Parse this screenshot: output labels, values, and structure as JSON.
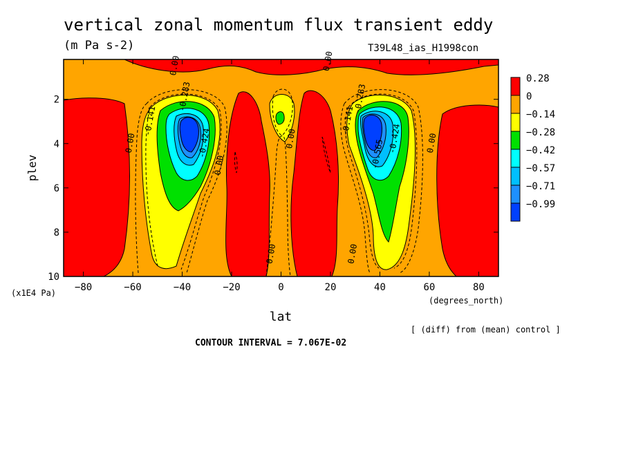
{
  "header": {
    "title": "vertical zonal momentum flux transient eddy",
    "units": "(m Pa s-2)",
    "run_label": "T39L48_ias_H1998con"
  },
  "footer": {
    "difference_note": "[ (diff) from (mean) control ]",
    "contour_interval": "CONTOUR INTERVAL = 7.067E-02"
  },
  "chart_data": {
    "type": "heatmap",
    "xlabel": "lat",
    "xunits": "(degrees_north)",
    "ylabel": "plev",
    "yunits": "(x1E4 Pa)",
    "xlim": [
      -88,
      88
    ],
    "ylim": [
      10,
      0.2
    ],
    "xticks": [
      -80,
      -60,
      -40,
      -20,
      0,
      20,
      40,
      60,
      80
    ],
    "yticks": [
      2,
      4,
      6,
      8,
      10
    ],
    "colorbar": {
      "levels": [
        "0.28",
        "0",
        "−0.14",
        "−0.28",
        "−0.42",
        "−0.57",
        "−0.71",
        "−0.99"
      ],
      "colors": [
        "#ff0000",
        "#ffa500",
        "#ffff00",
        "#00e000",
        "#00ffff",
        "#00bfff",
        "#1e90ff",
        "#0040ff"
      ]
    },
    "contour_labels": [
      {
        "text": "0.00",
        "lat": -60,
        "plev": 4.0
      },
      {
        "text": "-0.141",
        "lat": -52,
        "plev": 3.0
      },
      {
        "text": "-0.283",
        "lat": -38,
        "plev": 1.9
      },
      {
        "text": "-0.424",
        "lat": -30,
        "plev": 4.0
      },
      {
        "text": "0.00",
        "lat": -24,
        "plev": 5.0
      },
      {
        "text": "0.00",
        "lat": -42,
        "plev": 0.5
      },
      {
        "text": "0.00",
        "lat": 5,
        "plev": 3.8
      },
      {
        "text": "0.00",
        "lat": 20,
        "plev": 0.3
      },
      {
        "text": "-0.141",
        "lat": 28,
        "plev": 3.0
      },
      {
        "text": "-0.283",
        "lat": 33,
        "plev": 2.0
      },
      {
        "text": "-0.424",
        "lat": 47,
        "plev": 3.8
      },
      {
        "text": "-0.565",
        "lat": 40,
        "plev": 4.5
      },
      {
        "text": "0.00",
        "lat": 62,
        "plev": 4.0
      },
      {
        "text": "0.00",
        "lat": -3,
        "plev": 9.0
      },
      {
        "text": "0.00",
        "lat": 30,
        "plev": 9.0
      }
    ]
  }
}
